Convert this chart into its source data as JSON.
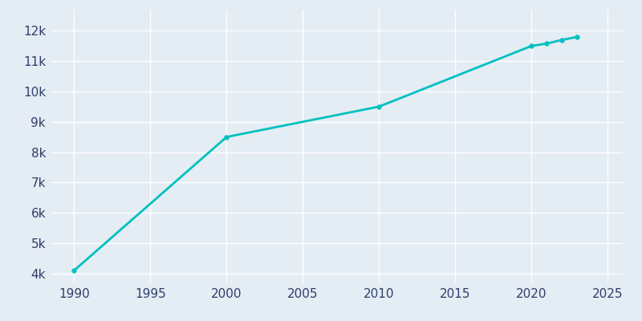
{
  "years": [
    1990,
    2000,
    2010,
    2020,
    2021,
    2022,
    2023
  ],
  "population": [
    4100,
    8500,
    9500,
    11500,
    11580,
    11700,
    11800
  ],
  "line_color": "#00C0C0",
  "marker_color": "#00C0C0",
  "axes_facecolor": "#E4ECF4",
  "figure_facecolor": "#E4ECF4",
  "grid_color": "#FFFFFF",
  "tick_color": "#2E3E6A",
  "xlim": [
    1988.5,
    2026
  ],
  "ylim": [
    3700,
    12700
  ],
  "xticks": [
    1990,
    1995,
    2000,
    2005,
    2010,
    2015,
    2020,
    2025
  ],
  "yticks": [
    4000,
    5000,
    6000,
    7000,
    8000,
    9000,
    10000,
    11000,
    12000
  ],
  "ytick_labels": [
    "4k",
    "5k",
    "6k",
    "7k",
    "8k",
    "9k",
    "10k",
    "11k",
    "12k"
  ],
  "marker_size": 4,
  "line_width": 2.0,
  "tick_fontsize": 11
}
